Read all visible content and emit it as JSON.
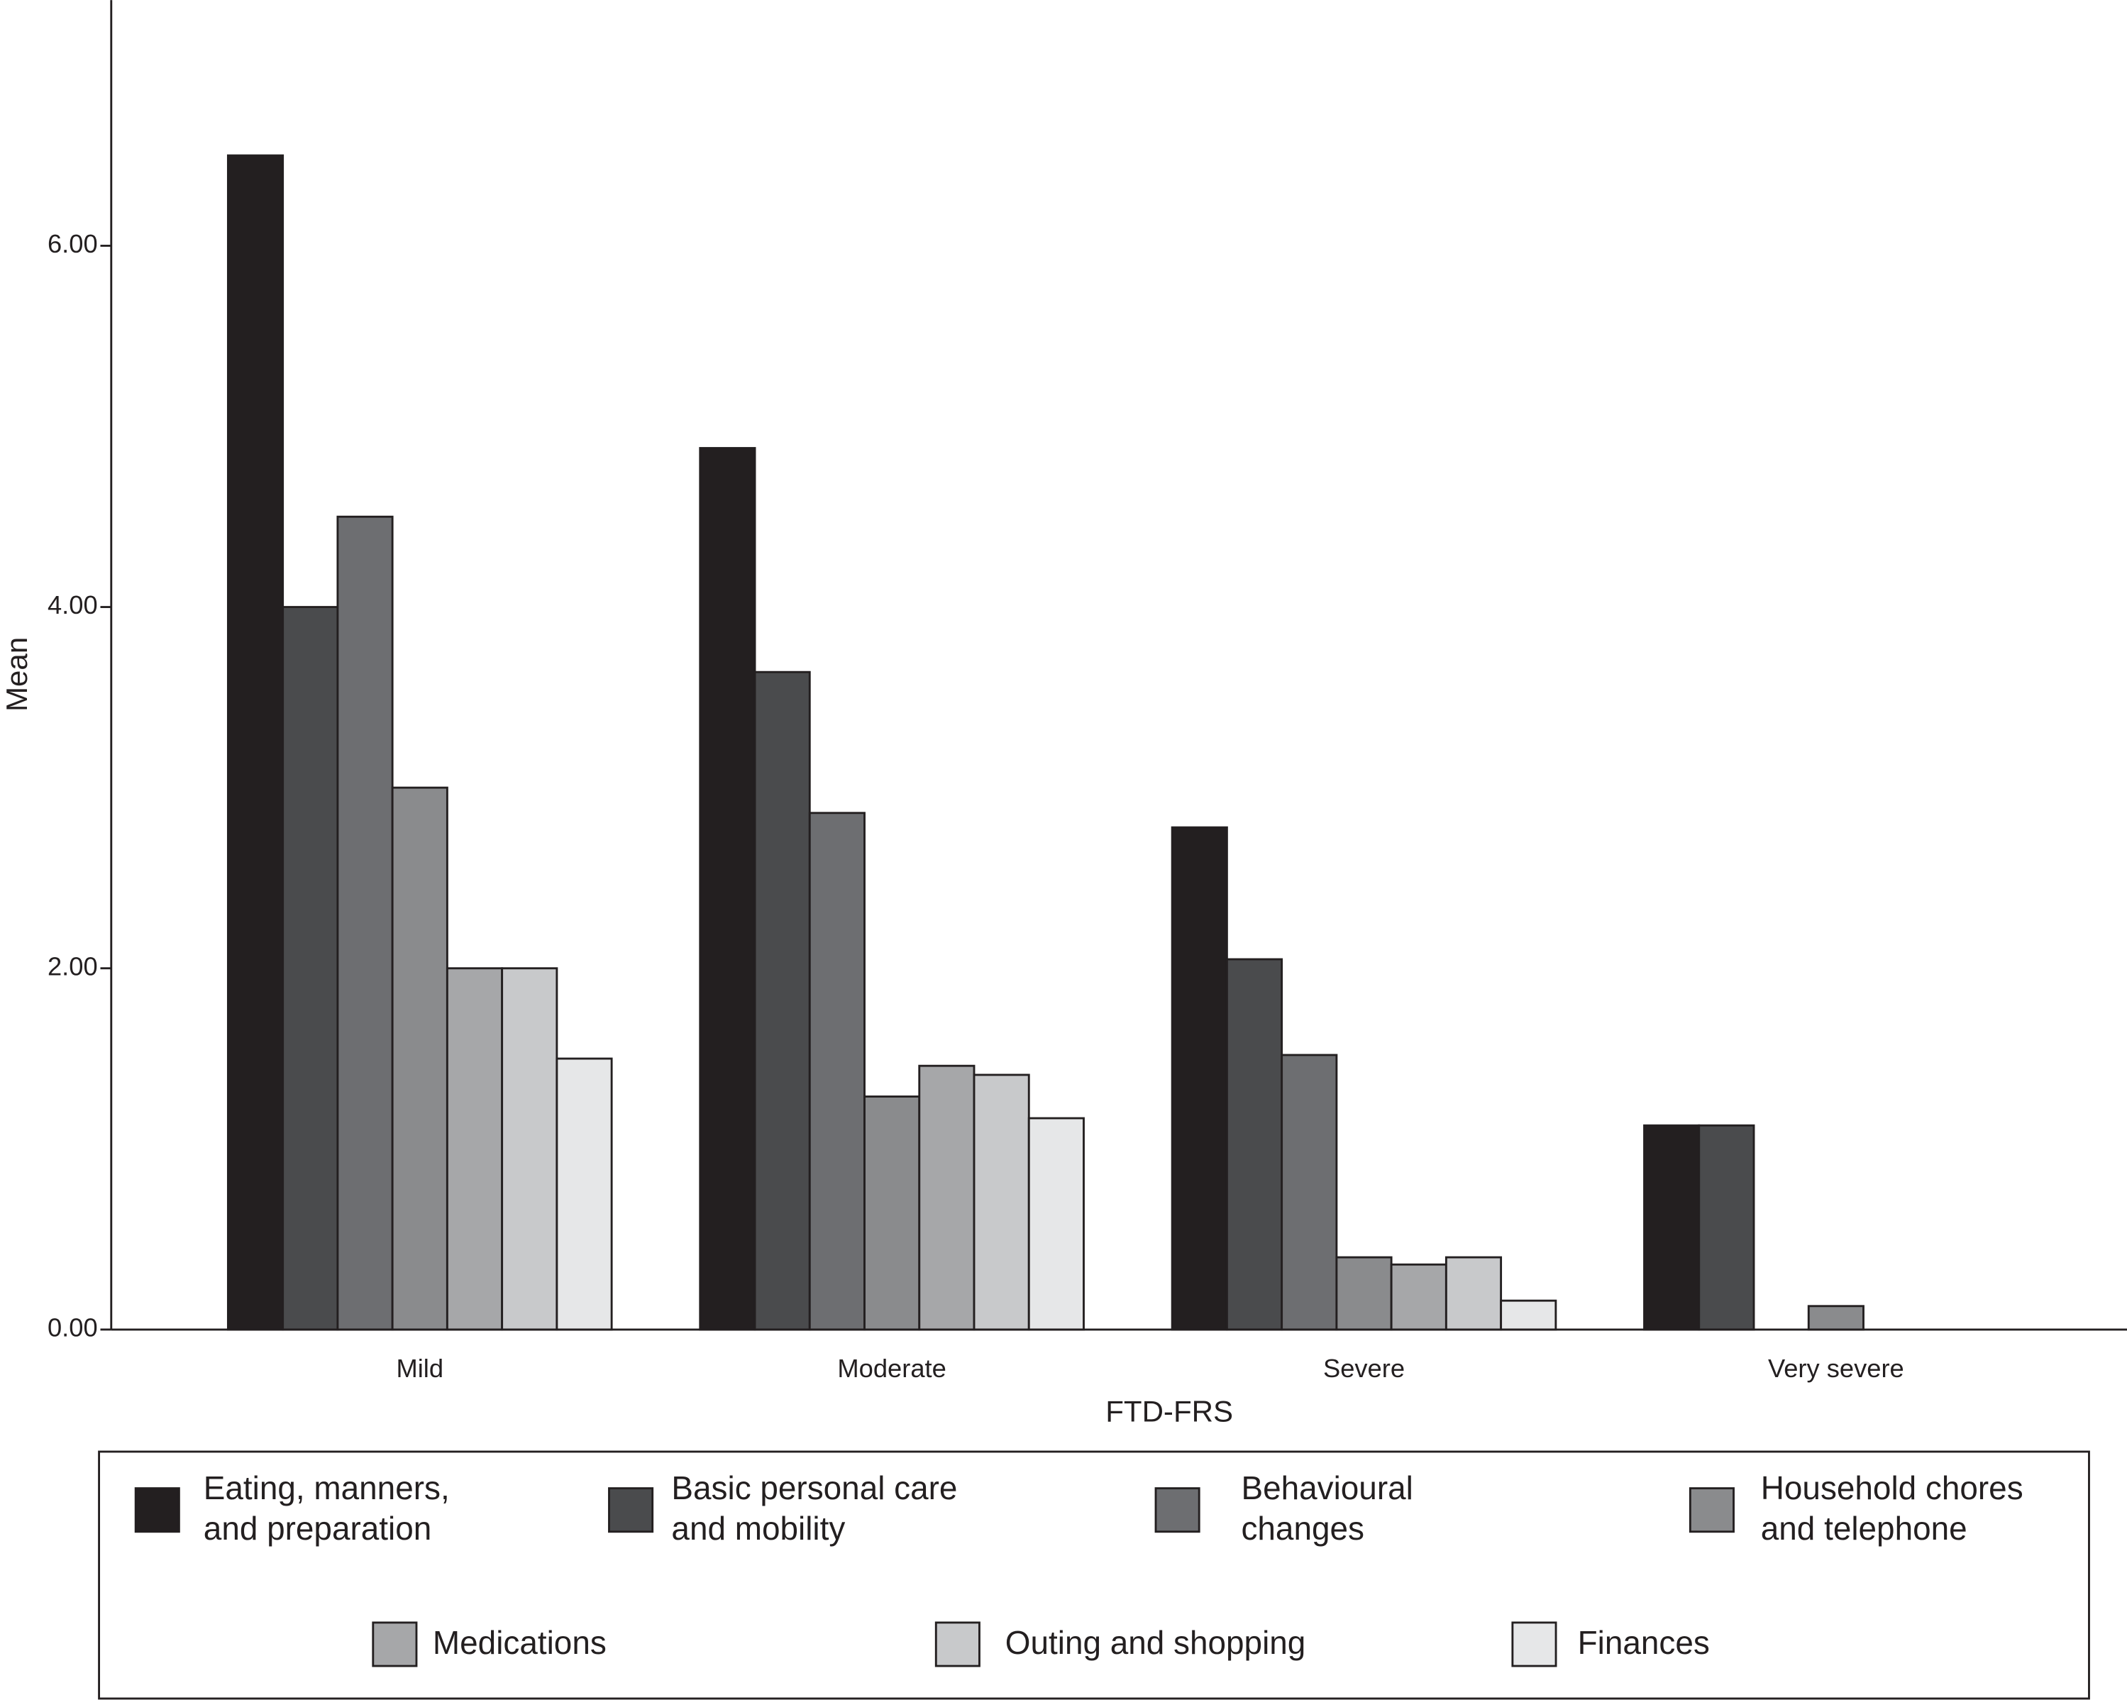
{
  "chart_data": {
    "type": "bar",
    "x_label": "FTD-FRS",
    "y_label": "Mean",
    "categories": [
      "Mild",
      "Moderate",
      "Severe",
      "Very severe"
    ],
    "series": [
      {
        "name": "Eating, manners, and preparation",
        "color": "#231f20",
        "values": [
          6.5,
          4.88,
          2.78,
          1.13
        ]
      },
      {
        "name": "Basic personal care and mobility",
        "color": "#4a4b4d",
        "values": [
          4.0,
          3.64,
          2.05,
          1.13
        ]
      },
      {
        "name": "Behavioural changes",
        "color": "#6d6e71",
        "values": [
          4.5,
          2.86,
          1.52,
          null
        ]
      },
      {
        "name": "Household chores and telephone",
        "color": "#8a8b8d",
        "values": [
          3.0,
          1.29,
          0.4,
          0.13
        ]
      },
      {
        "name": "Medications",
        "color": "#a6a7a9",
        "values": [
          2.0,
          1.46,
          0.36,
          null
        ]
      },
      {
        "name": "Outing and shopping",
        "color": "#c8c9cb",
        "values": [
          2.0,
          1.41,
          0.4,
          null
        ]
      },
      {
        "name": "Finances",
        "color": "#e6e7e8",
        "values": [
          1.5,
          1.17,
          0.16,
          null
        ]
      }
    ],
    "ylim": [
      0,
      7.36
    ],
    "yticks": [
      {
        "value": 0,
        "label": "0.00"
      },
      {
        "value": 2,
        "label": "2.00"
      },
      {
        "value": 4,
        "label": "4.00"
      },
      {
        "value": 6,
        "label": "6.00"
      }
    ],
    "legend": "bottom"
  }
}
